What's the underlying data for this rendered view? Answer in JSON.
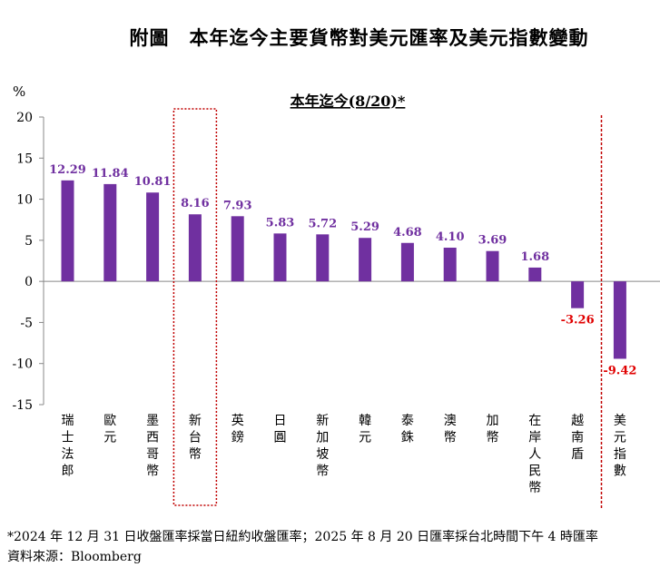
{
  "title": "附圖　本年迄今主要貨幣對美元匯率及美元指數變動",
  "footnote": "*2024 年 12 月 31 日收盤匯率採當日紐約收盤匯率；2025 年 8 月 20 日匯率採台北時間下午 4 時匯率",
  "source": "資料來源：Bloomberg",
  "colors": {
    "bar": "#7030A0",
    "negative_label": "#E00000",
    "highlight_box": "#C00000"
  },
  "chart_data": {
    "type": "bar",
    "subtitle": "本年迄今(8/20)*",
    "ylabel": "%",
    "ylim": [
      -15,
      20
    ],
    "yticks": [
      20,
      15,
      10,
      5,
      0,
      -5,
      -10,
      -15
    ],
    "categories": [
      "瑞士法郎",
      "歐元",
      "墨西哥幣",
      "新台幣",
      "英鎊",
      "日圓",
      "新加坡幣",
      "韓元",
      "泰銖",
      "澳幣",
      "加幣",
      "在岸人民幣",
      "越南盾",
      "美元指數"
    ],
    "values": [
      12.29,
      11.84,
      10.81,
      8.16,
      7.93,
      5.83,
      5.72,
      5.29,
      4.68,
      4.1,
      3.69,
      1.68,
      -3.26,
      -9.42
    ],
    "value_labels": [
      "12.29",
      "11.84",
      "10.81",
      "8.16",
      "7.93",
      "5.83",
      "5.72",
      "5.29",
      "4.68",
      "4.10",
      "3.69",
      "1.68",
      "-3.26",
      "-9.42"
    ],
    "highlighted_category": "新台幣",
    "separated_category": "美元指數"
  }
}
